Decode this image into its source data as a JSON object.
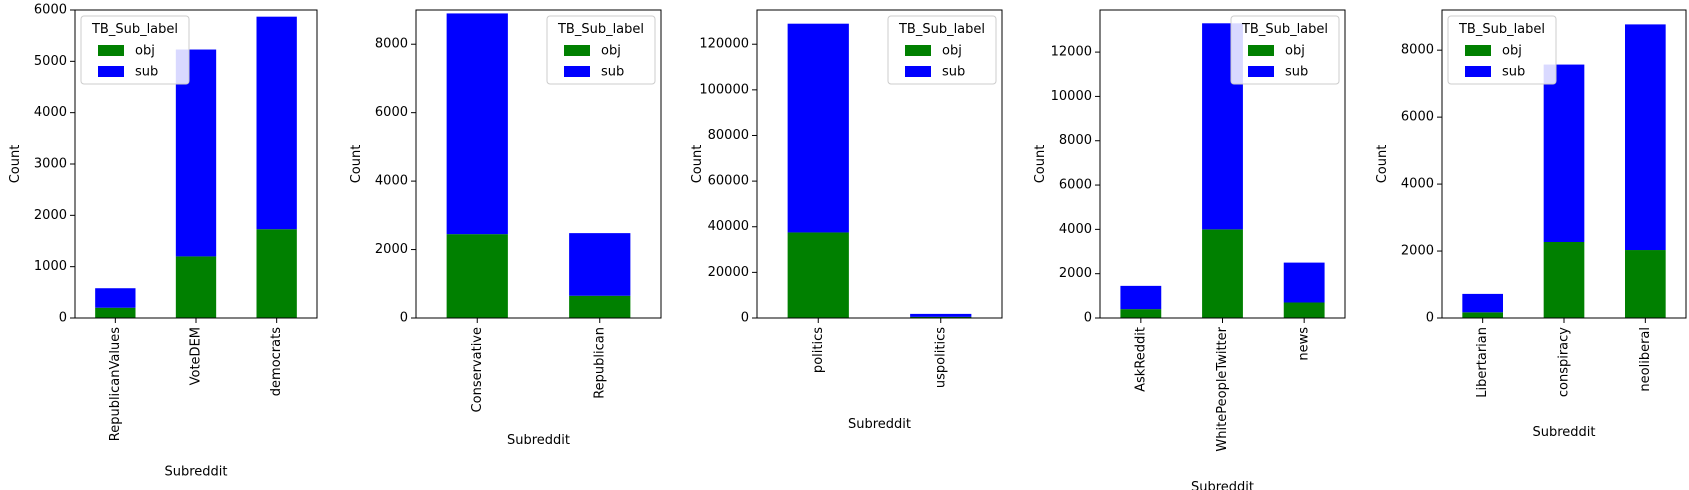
{
  "colors": {
    "obj": "#008000",
    "sub": "#0000ff"
  },
  "chart_data": [
    {
      "type": "bar",
      "stacked": true,
      "categories": [
        "RepublicanValues",
        "VoteDEM",
        "democrats"
      ],
      "series": [
        {
          "name": "obj",
          "values": [
            200,
            1200,
            1730
          ]
        },
        {
          "name": "sub",
          "values": [
            380,
            4030,
            4140
          ]
        }
      ],
      "xlabel": "Subreddit",
      "ylabel": "Count",
      "ylim": [
        0,
        6000
      ],
      "yticks": [
        0,
        1000,
        2000,
        3000,
        4000,
        5000,
        6000
      ],
      "legend_title": "TB_Sub_label",
      "legend_position": "top-left"
    },
    {
      "type": "bar",
      "stacked": true,
      "categories": [
        "Conservative",
        "Republican"
      ],
      "series": [
        {
          "name": "obj",
          "values": [
            2450,
            650
          ]
        },
        {
          "name": "sub",
          "values": [
            6450,
            1830
          ]
        }
      ],
      "xlabel": "Subreddit",
      "ylabel": "Count",
      "ylim": [
        0,
        9000
      ],
      "yticks": [
        0,
        2000,
        4000,
        6000,
        8000
      ],
      "legend_title": "TB_Sub_label",
      "legend_position": "top-right"
    },
    {
      "type": "bar",
      "stacked": true,
      "categories": [
        "politics",
        "uspolitics"
      ],
      "series": [
        {
          "name": "obj",
          "values": [
            37500,
            500
          ]
        },
        {
          "name": "sub",
          "values": [
            91500,
            1300
          ]
        }
      ],
      "xlabel": "Subreddit",
      "ylabel": "Count",
      "ylim": [
        0,
        135000
      ],
      "yticks": [
        0,
        20000,
        40000,
        60000,
        80000,
        100000,
        120000
      ],
      "legend_title": "TB_Sub_label",
      "legend_position": "top-right"
    },
    {
      "type": "bar",
      "stacked": true,
      "categories": [
        "AskReddit",
        "WhitePeopleTwitter",
        "news"
      ],
      "series": [
        {
          "name": "obj",
          "values": [
            400,
            4000,
            700
          ]
        },
        {
          "name": "sub",
          "values": [
            1050,
            9300,
            1800
          ]
        }
      ],
      "xlabel": "Subreddit",
      "ylabel": "Count",
      "ylim": [
        0,
        13900
      ],
      "yticks": [
        0,
        2000,
        4000,
        6000,
        8000,
        10000,
        12000
      ],
      "legend_title": "TB_Sub_label",
      "legend_position": "top-right"
    },
    {
      "type": "bar",
      "stacked": true,
      "categories": [
        "Libertarian",
        "conspiracy",
        "neoliberal"
      ],
      "series": [
        {
          "name": "obj",
          "values": [
            170,
            2270,
            2030
          ]
        },
        {
          "name": "sub",
          "values": [
            550,
            5300,
            6740
          ]
        }
      ],
      "xlabel": "Subreddit",
      "ylabel": "Count",
      "ylim": [
        0,
        9200
      ],
      "yticks": [
        0,
        2000,
        4000,
        6000,
        8000
      ],
      "legend_title": "TB_Sub_label",
      "legend_position": "top-left"
    }
  ]
}
